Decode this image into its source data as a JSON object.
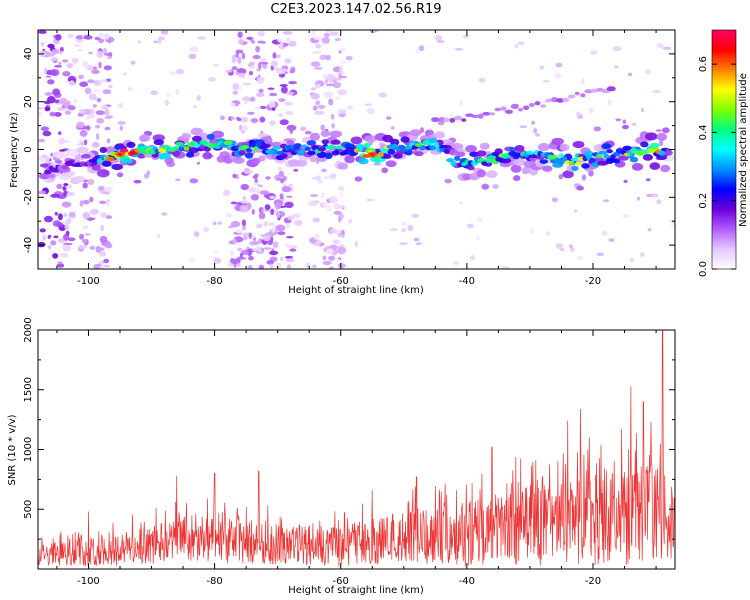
{
  "title": "C2E3.2023.147.02.56.R19",
  "chart_data": [
    {
      "type": "heatmap",
      "xlabel": "Height of straight line (km)",
      "ylabel": "Frequency (Hz)",
      "xlim": [
        -108,
        -7
      ],
      "ylim": [
        -50,
        50
      ],
      "xticks": [
        -100,
        -80,
        -60,
        -40,
        -20
      ],
      "yticks": [
        -40,
        -20,
        0,
        20,
        40
      ],
      "colorbar": {
        "label": "Normalized spectral amplitude",
        "range": [
          0,
          0.7
        ],
        "ticks": [
          0.0,
          0.2,
          0.4,
          0.6
        ],
        "colors": [
          "#ffffff",
          "#e6c8ff",
          "#b15cff",
          "#6a00d8",
          "#0000ff",
          "#0090ff",
          "#00ffff",
          "#00ff80",
          "#7fff00",
          "#ffff00",
          "#ff8000",
          "#ff0000",
          "#ff0066"
        ]
      },
      "ridge": [
        {
          "x": -106,
          "y": -8,
          "a": 0.18
        },
        {
          "x": -100,
          "y": -5,
          "a": 0.22
        },
        {
          "x": -95,
          "y": -2,
          "a": 0.62
        },
        {
          "x": -90,
          "y": 0,
          "a": 0.45
        },
        {
          "x": -85,
          "y": 1,
          "a": 0.4
        },
        {
          "x": -80,
          "y": 2,
          "a": 0.42
        },
        {
          "x": -75,
          "y": 1,
          "a": 0.38
        },
        {
          "x": -70,
          "y": 0,
          "a": 0.3
        },
        {
          "x": -65,
          "y": 0,
          "a": 0.35
        },
        {
          "x": -60,
          "y": 0,
          "a": 0.32
        },
        {
          "x": -55,
          "y": -2,
          "a": 0.6
        },
        {
          "x": -50,
          "y": 1,
          "a": 0.38
        },
        {
          "x": -45,
          "y": 2,
          "a": 0.45
        },
        {
          "x": -42,
          "y": -5,
          "a": 0.32
        },
        {
          "x": -38,
          "y": -5,
          "a": 0.35
        },
        {
          "x": -33,
          "y": -3,
          "a": 0.4
        },
        {
          "x": -28,
          "y": -2,
          "a": 0.32
        },
        {
          "x": -23,
          "y": -5,
          "a": 0.45
        },
        {
          "x": -18,
          "y": -2,
          "a": 0.38
        },
        {
          "x": -13,
          "y": -1,
          "a": 0.42
        },
        {
          "x": -10,
          "y": 0,
          "a": 0.55
        },
        {
          "x": -8,
          "y": -2,
          "a": 0.2
        }
      ],
      "harmonic": [
        {
          "x": -42,
          "y": 12,
          "a": 0.12
        },
        {
          "x": -35,
          "y": 16,
          "a": 0.14
        },
        {
          "x": -28,
          "y": 19,
          "a": 0.12
        },
        {
          "x": -22,
          "y": 23,
          "a": 0.1
        },
        {
          "x": -18,
          "y": 25,
          "a": 0.12
        }
      ],
      "bands": [
        {
          "x": -105,
          "a": 0.14
        },
        {
          "x": -99,
          "a": 0.1
        },
        {
          "x": -75,
          "a": 0.1
        },
        {
          "x": -70,
          "a": 0.12
        },
        {
          "x": -62,
          "a": 0.07
        }
      ]
    },
    {
      "type": "line",
      "xlabel": "Height of straight line (km)",
      "ylabel": "SNR (10 * v/v)",
      "xlim": [
        -108,
        -7
      ],
      "ylim": [
        0,
        2000
      ],
      "xticks": [
        -100,
        -80,
        -60,
        -40,
        -20
      ],
      "yticks": [
        500,
        1000,
        1500,
        2000
      ],
      "color": "#ee3333",
      "envelope": [
        {
          "x": -108,
          "y": 200
        },
        {
          "x": -100,
          "y": 260
        },
        {
          "x": -90,
          "y": 360
        },
        {
          "x": -85,
          "y": 450
        },
        {
          "x": -80,
          "y": 420
        },
        {
          "x": -75,
          "y": 430
        },
        {
          "x": -70,
          "y": 360
        },
        {
          "x": -65,
          "y": 380
        },
        {
          "x": -60,
          "y": 340
        },
        {
          "x": -55,
          "y": 420
        },
        {
          "x": -50,
          "y": 480
        },
        {
          "x": -45,
          "y": 520
        },
        {
          "x": -40,
          "y": 560
        },
        {
          "x": -35,
          "y": 640
        },
        {
          "x": -30,
          "y": 700
        },
        {
          "x": -25,
          "y": 720
        },
        {
          "x": -20,
          "y": 800
        },
        {
          "x": -15,
          "y": 850
        },
        {
          "x": -10,
          "y": 900
        },
        {
          "x": -7,
          "y": 650
        }
      ],
      "peaks": [
        {
          "x": -100,
          "y": 480
        },
        {
          "x": -86,
          "y": 780
        },
        {
          "x": -80,
          "y": 800
        },
        {
          "x": -73,
          "y": 820
        },
        {
          "x": -55,
          "y": 660
        },
        {
          "x": -48,
          "y": 770
        },
        {
          "x": -36,
          "y": 1020
        },
        {
          "x": -24,
          "y": 1240
        },
        {
          "x": -22,
          "y": 1340
        },
        {
          "x": -14,
          "y": 1530
        },
        {
          "x": -12,
          "y": 1400
        },
        {
          "x": -9,
          "y": 2000
        }
      ]
    }
  ]
}
